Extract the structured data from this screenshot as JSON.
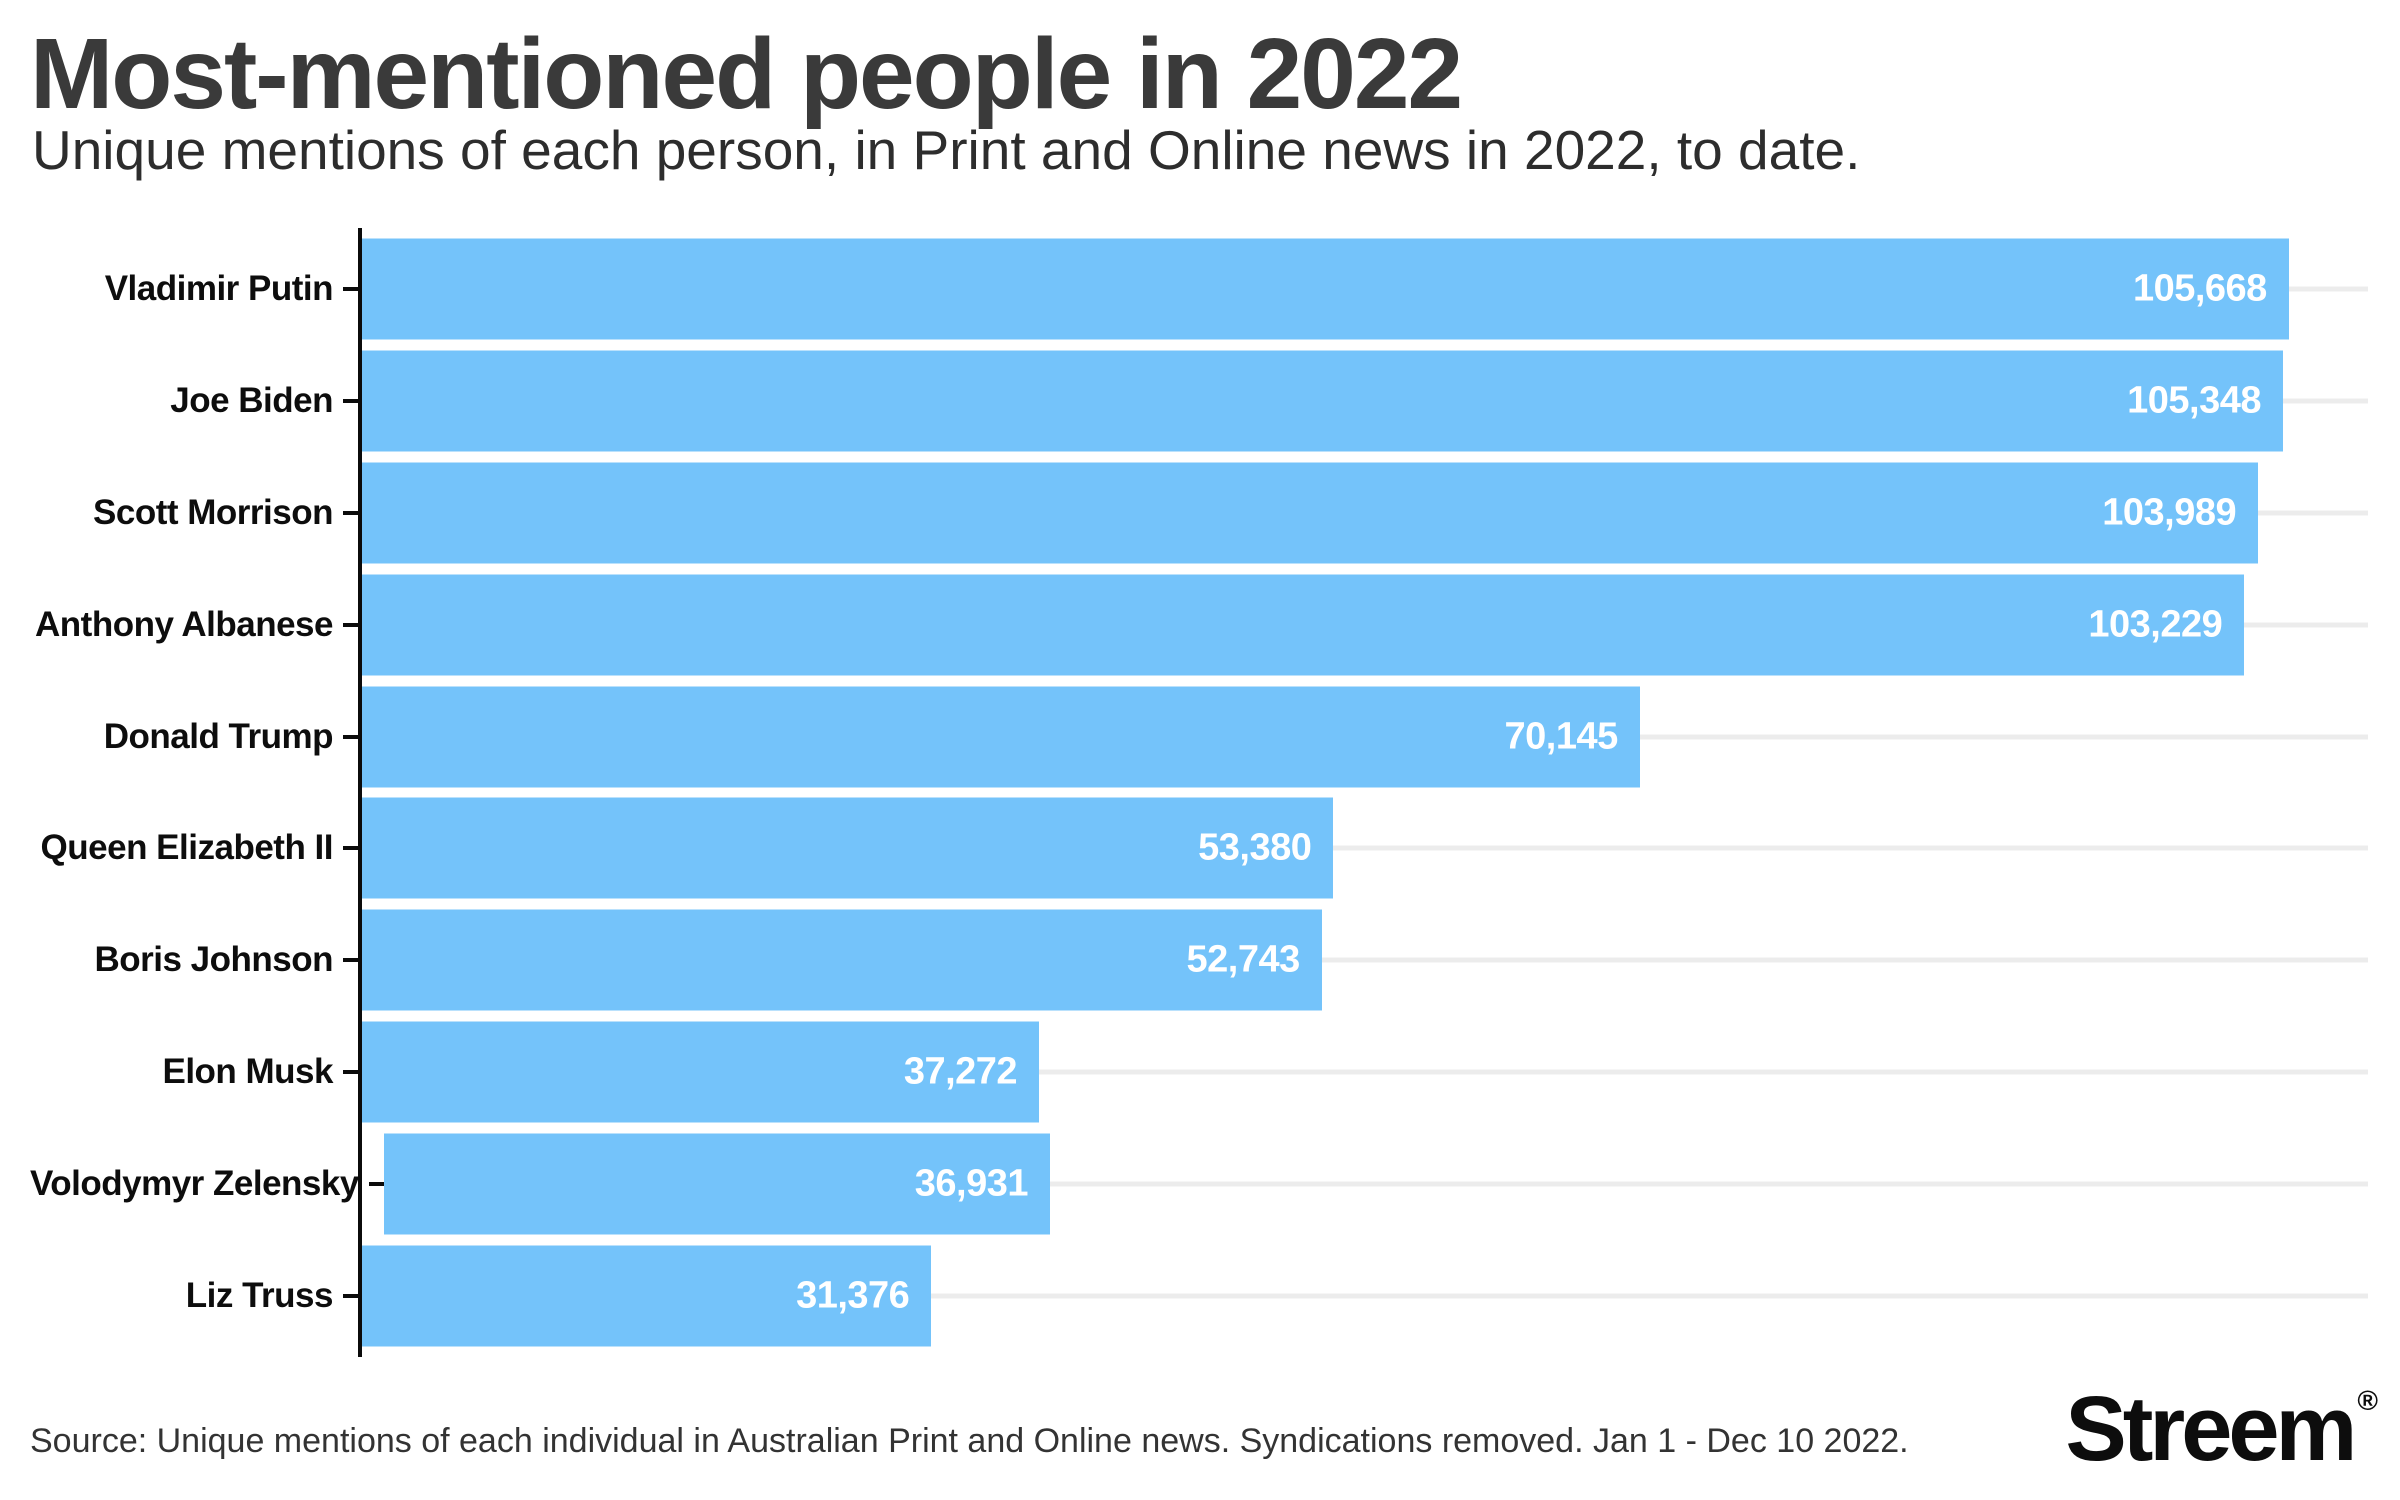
{
  "header": {
    "title": "Most-mentioned people in 2022",
    "subtitle": "Unique mentions of each person, in Print and Online news in 2022, to date."
  },
  "footer": {
    "source": "Source: Unique mentions of each individual in Australian Print and Online news. Syndications removed. Jan 1 - Dec 10 2022.",
    "logo_text": "Streem",
    "logo_registered_mark": "®"
  },
  "colors": {
    "bar": "#74c3fa",
    "gridline": "#ececec",
    "axis": "#0b0b0b",
    "title_text": "#3a3a3a",
    "subtitle_text": "#2d2d2d",
    "label_text": "#0d0d0d",
    "value_text": "#ffffff",
    "source_text": "#333333",
    "background": "#ffffff"
  },
  "chart_data": {
    "type": "bar",
    "orientation": "horizontal",
    "title": "Most-mentioned people in 2022",
    "xlabel": "",
    "ylabel": "",
    "categories": [
      "Vladimir Putin",
      "Joe Biden",
      "Scott Morrison",
      "Anthony Albanese",
      "Donald Trump",
      "Queen Elizabeth II",
      "Boris Johnson",
      "Elon Musk",
      "Volodymyr Zelensky",
      "Liz Truss"
    ],
    "values": [
      105668,
      105348,
      103989,
      103229,
      70145,
      53380,
      52743,
      37272,
      36931,
      31376
    ],
    "value_labels": [
      "105,668",
      "105,348",
      "103,989",
      "103,229",
      "70,145",
      "53,380",
      "52,743",
      "37,272",
      "36,931",
      "31,376"
    ],
    "xlim": [
      0,
      110000
    ],
    "grid": "per-row horizontal gridlines, light gray, behind bars",
    "legend_position": "none",
    "bar_color": "#74c3fa",
    "value_label_position": "inside-end, white bold"
  }
}
